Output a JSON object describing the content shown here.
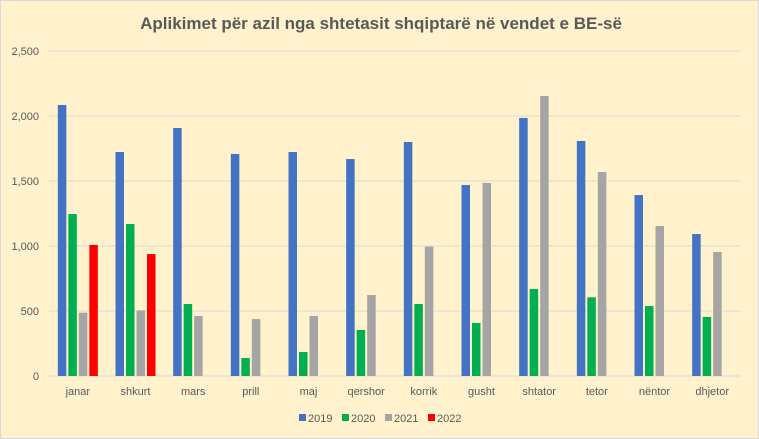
{
  "chart_data": {
    "type": "bar",
    "title": "Aplikimet për azil nga shtetasit shqiptarë në vendet e BE-së",
    "xlabel": "",
    "ylabel": "",
    "ylim": [
      0,
      2500
    ],
    "yticks": [
      0,
      500,
      1000,
      1500,
      2000,
      2500
    ],
    "ytick_labels": [
      "0",
      "500",
      "1,000",
      "1,500",
      "2,000",
      "2,500"
    ],
    "grid": true,
    "legend_position": "bottom",
    "categories": [
      "janar",
      "shkurt",
      "mars",
      "prill",
      "maj",
      "qershor",
      "korrik",
      "gusht",
      "shtator",
      "tetor",
      "nëntor",
      "dhjetor"
    ],
    "series": [
      {
        "name": "2019",
        "color": "#4472C4",
        "values": [
          2085,
          1723,
          1908,
          1708,
          1723,
          1669,
          1800,
          1469,
          1985,
          1808,
          1392,
          1092
        ]
      },
      {
        "name": "2020",
        "color": "#00B050",
        "values": [
          1246,
          1169,
          554,
          138,
          185,
          354,
          554,
          408,
          669,
          605,
          538,
          454
        ]
      },
      {
        "name": "2021",
        "color": "#A5A5A5",
        "values": [
          487,
          505,
          462,
          438,
          462,
          623,
          995,
          1485,
          2154,
          1569,
          1154,
          954
        ]
      },
      {
        "name": "2022",
        "color": "#FF0000",
        "values": [
          1008,
          938,
          null,
          null,
          null,
          null,
          null,
          null,
          null,
          null,
          null,
          null
        ]
      }
    ]
  }
}
